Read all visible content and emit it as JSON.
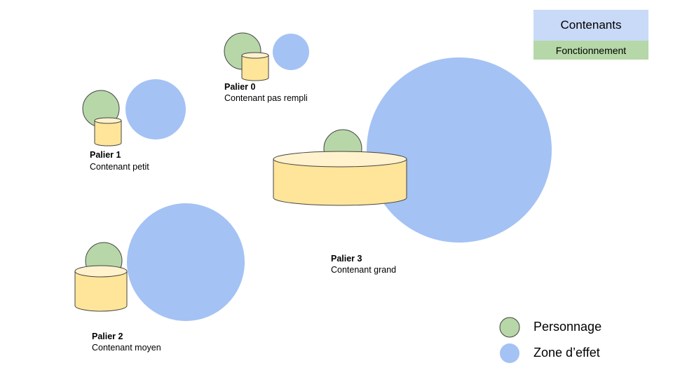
{
  "header": {
    "contenants_label": "Contenants",
    "fonctionnement_label": "Fonctionnement"
  },
  "tiers": [
    {
      "title": "Palier 0",
      "subtitle": "Contenant pas rempli"
    },
    {
      "title": "Palier 1",
      "subtitle": "Contenant petit"
    },
    {
      "title": "Palier 2",
      "subtitle": "Contenant moyen"
    },
    {
      "title": "Palier 3",
      "subtitle": "Contenant grand"
    }
  ],
  "legend": {
    "personnage_label": "Personnage",
    "zone_label": "Zone d’effet"
  },
  "colors": {
    "personnage": "#b7d7a8",
    "zone": "#a4c2f4",
    "container_fill": "#ffe599",
    "container_top": "#fff2cc",
    "header_blue": "#c9daf8",
    "header_green": "#b6d7a8",
    "stroke": "#444444"
  }
}
